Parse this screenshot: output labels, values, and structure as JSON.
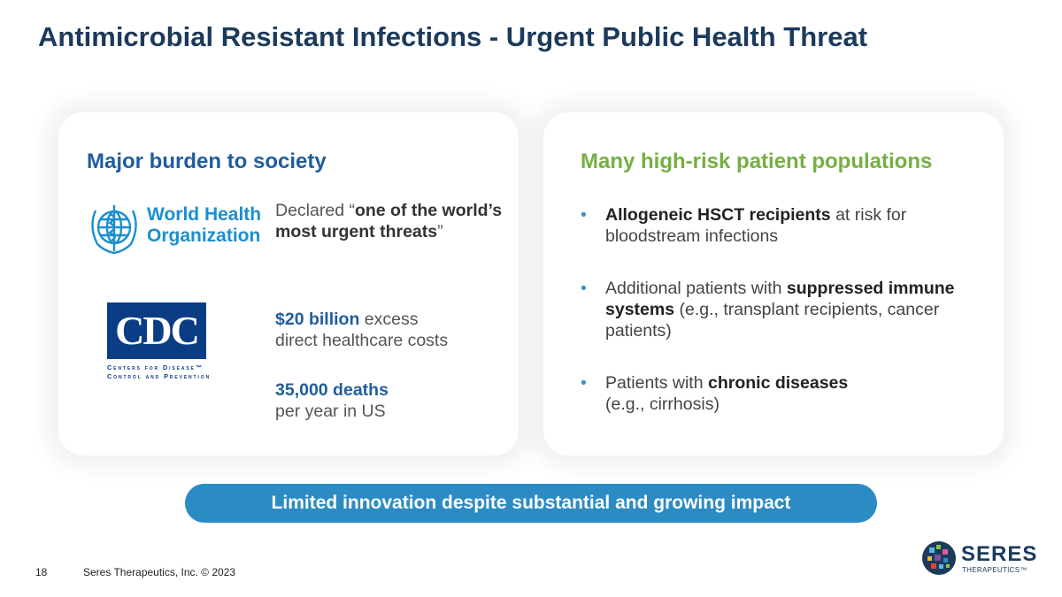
{
  "slide": {
    "title": "Antimicrobial Resistant Infections - Urgent Public Health Threat",
    "page_number": "18",
    "footer": "Seres Therapeutics, Inc. © 2023"
  },
  "left_panel": {
    "heading": "Major burden to society",
    "who_logo": {
      "line1": "World Health",
      "line2": "Organization",
      "icon": "who-emblem-icon",
      "color": "#1a8fd0"
    },
    "cdc_logo": {
      "letters": "CDC",
      "line1": "Centers for Disease™",
      "line2": "Control and Prevention",
      "color": "#0b3d85"
    },
    "stat1": {
      "prefix": "Declared “",
      "bold": "one of the world’s most urgent threats",
      "suffix": "”"
    },
    "stat2": {
      "value": "$20 billion",
      "text1": " excess",
      "text2": "direct healthcare costs"
    },
    "stat3": {
      "value": "35,000 deaths",
      "text": "per year in US"
    }
  },
  "right_panel": {
    "heading": "Many high-risk patient populations",
    "bullets": [
      {
        "bold": "Allogeneic HSCT recipients",
        "text": " at risk for bloodstream infections"
      },
      {
        "pre": "Additional patients with ",
        "bold": "suppressed immune systems",
        "text": " (e.g., transplant recipients, cancer patients)"
      },
      {
        "pre": "Patients with ",
        "bold": "chronic diseases",
        "text2": "(e.g., cirrhosis)"
      }
    ],
    "bullet_char": "•"
  },
  "banner": {
    "text": "Limited innovation despite substantial and growing impact",
    "color": "#2c8bc3"
  },
  "brand": {
    "name": "SERES",
    "sub": "THERAPEUTICS™"
  },
  "colors": {
    "title": "#1b3a5c",
    "left_heading": "#1f5d9e",
    "right_heading": "#76b041"
  }
}
